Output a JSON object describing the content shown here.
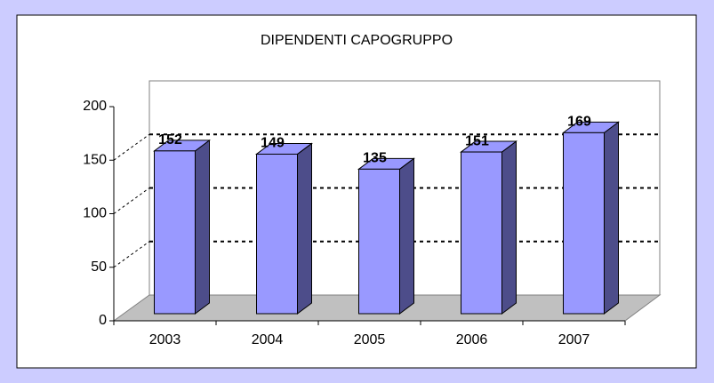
{
  "chart_data": {
    "type": "bar",
    "title": "DIPENDENTI CAPOGRUPPO",
    "categories": [
      "2003",
      "2004",
      "2005",
      "2006",
      "2007"
    ],
    "values": [
      152,
      149,
      135,
      151,
      169
    ],
    "color": "#9999ff",
    "ylim": [
      0,
      200
    ],
    "yticks": [
      0,
      50,
      100,
      150,
      200
    ],
    "grid": true
  }
}
